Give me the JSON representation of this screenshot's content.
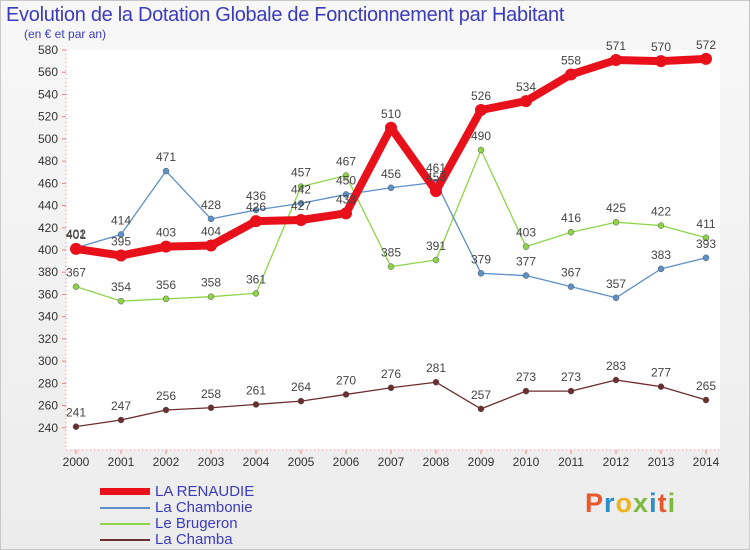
{
  "header": {
    "title": "Evolution de la Dotation Globale de Fonctionnement par Habitant",
    "subtitle": "(en € et par an)"
  },
  "brand": {
    "letters": [
      "P",
      "r",
      "o",
      "x",
      "i",
      "t",
      "i"
    ],
    "colors": [
      "#e8582a",
      "#2c8ec9",
      "#f0b21c",
      "#7dbb3c",
      "#2c8ec9",
      "#e8582a",
      "#7dbb3c"
    ]
  },
  "chart_data": {
    "type": "line",
    "title": "Evolution de la Dotation Globale de Fonctionnement par Habitant",
    "subtitle": "(en € et par an)",
    "xlabel": "",
    "ylabel": "",
    "ylim": [
      220,
      580
    ],
    "ytick_step": 20,
    "grid": false,
    "legend_position": "bottom-left",
    "x": [
      "2000",
      "2001",
      "2002",
      "2003",
      "2004",
      "2005",
      "2006",
      "2007",
      "2008",
      "2009",
      "2010",
      "2011",
      "2012",
      "2013",
      "2014"
    ],
    "series": [
      {
        "name": "LA RENAUDIE",
        "color": "#e8101a",
        "values": [
          401,
          395,
          403,
          404,
          426,
          427,
          433,
          510,
          453,
          526,
          534,
          558,
          571,
          570,
          572
        ],
        "labels": [
          "401",
          "395",
          "403",
          "404",
          "426",
          "427",
          "433",
          "510",
          "453",
          "526",
          "534",
          "558",
          "571",
          "570",
          "572"
        ]
      },
      {
        "name": "La Chambonie",
        "color": "#5d8fc8",
        "values": [
          402,
          414,
          471,
          428,
          436,
          442,
          450,
          456,
          461,
          379,
          377,
          367,
          357,
          383,
          393
        ],
        "labels": [
          "402",
          "414",
          "471",
          "428",
          "436",
          "442",
          "450",
          "456",
          "461",
          "379",
          "377",
          "367",
          "357",
          "383",
          "393"
        ]
      },
      {
        "name": "Le Brugeron",
        "color": "#8ed44a",
        "values": [
          367,
          354,
          356,
          358,
          361,
          457,
          467,
          385,
          391,
          490,
          403,
          416,
          425,
          422,
          411
        ],
        "labels": [
          "367",
          "354",
          "356",
          "358",
          "361",
          "457",
          "467",
          "385",
          "391",
          "490",
          "403",
          "416",
          "425",
          "422",
          "411"
        ]
      },
      {
        "name": "La Chamba",
        "color": "#6b2e2e",
        "values": [
          241,
          247,
          256,
          258,
          261,
          264,
          270,
          276,
          281,
          257,
          273,
          273,
          283,
          277,
          265
        ],
        "labels": [
          "241",
          "247",
          "256",
          "258",
          "261",
          "264",
          "270",
          "276",
          "281",
          "257",
          "273",
          "273",
          "283",
          "277",
          "265"
        ]
      }
    ]
  }
}
